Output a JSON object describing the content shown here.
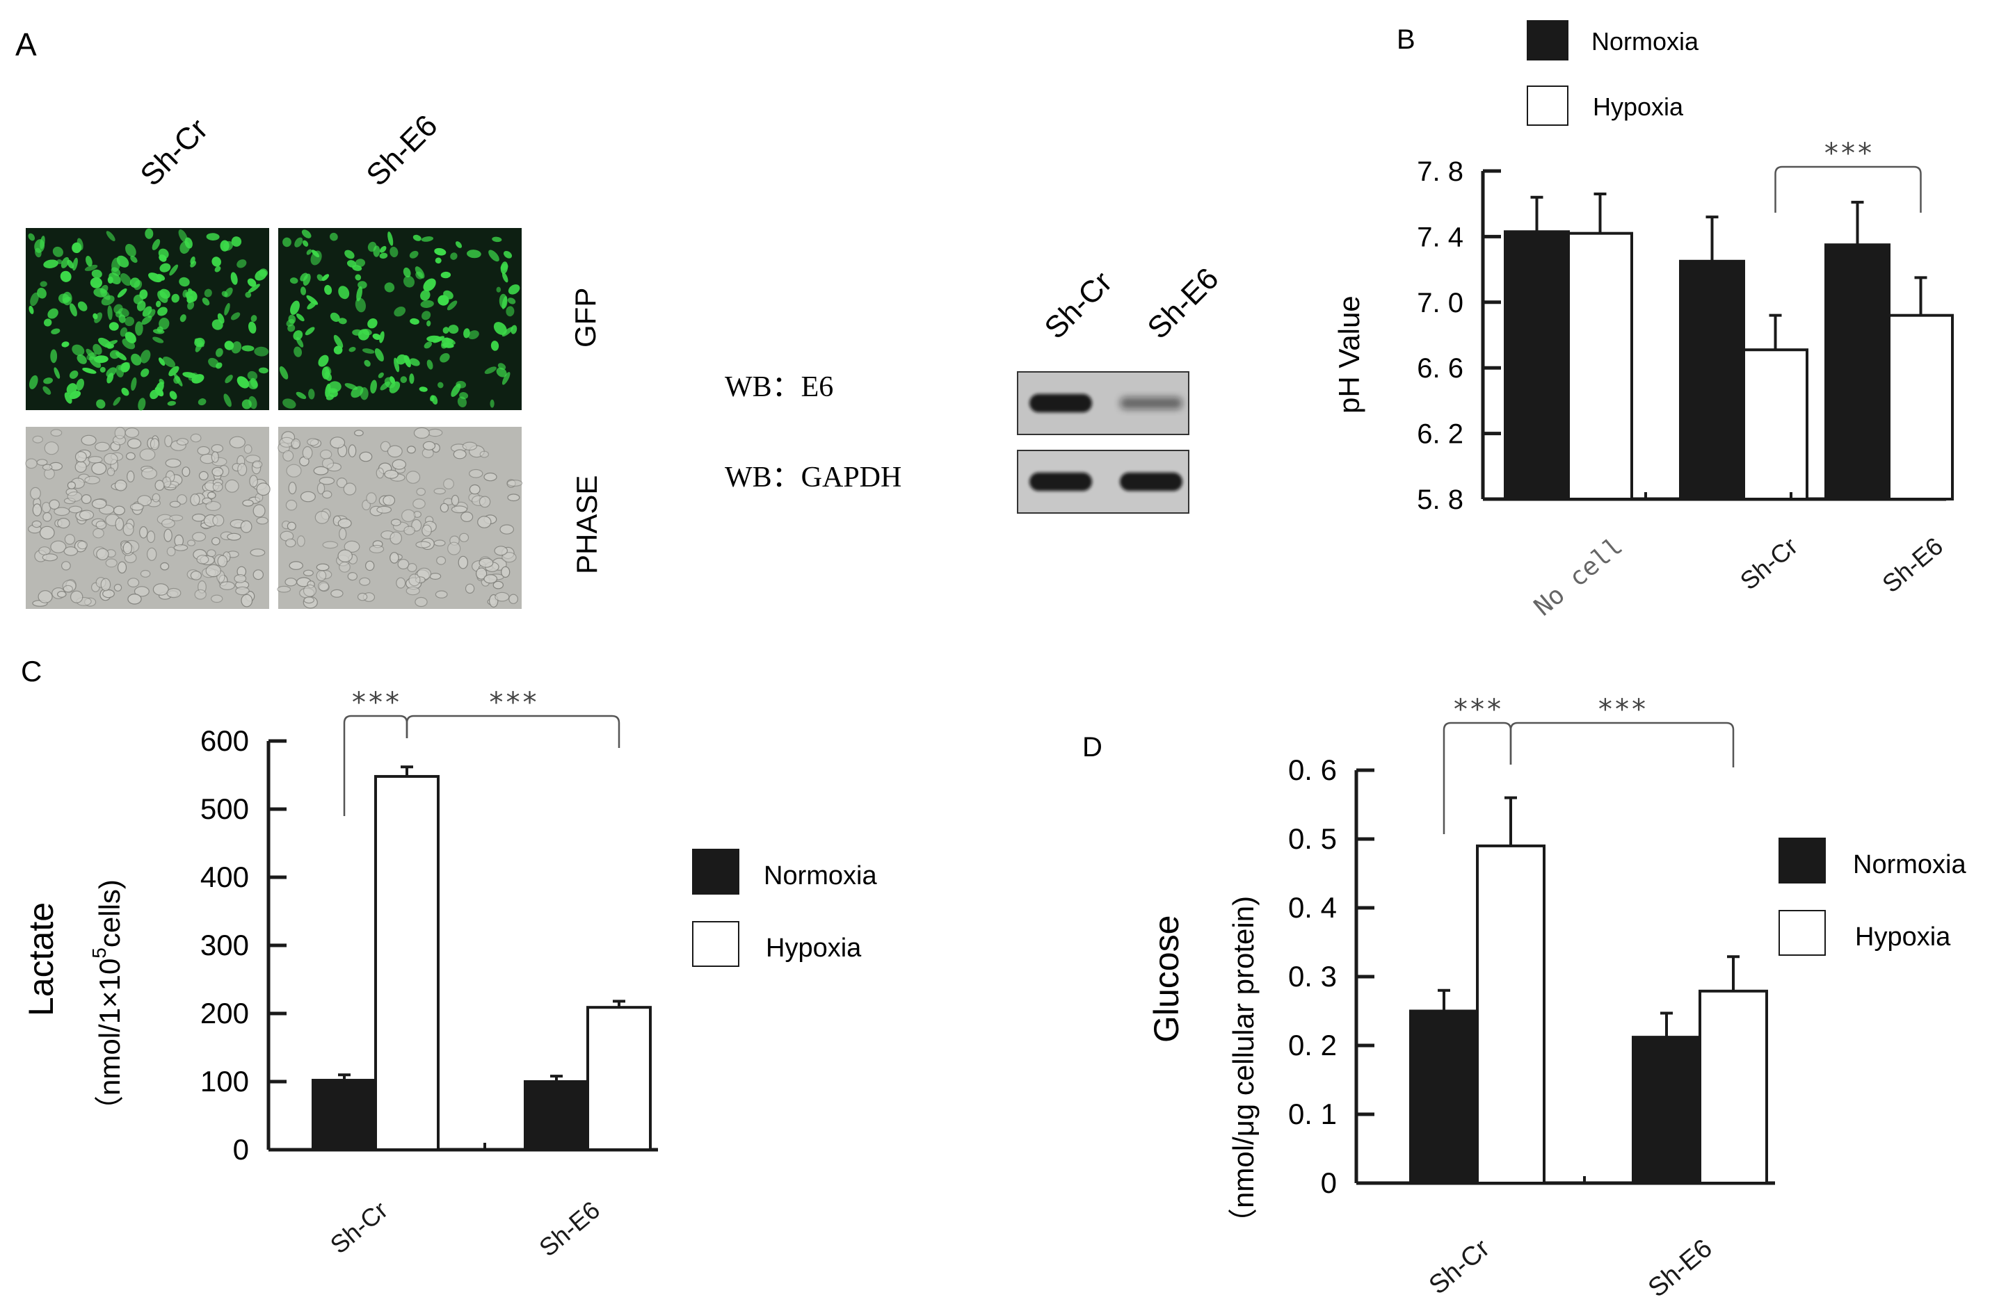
{
  "panel_labels": {
    "a": "A",
    "b": "B",
    "c": "C",
    "d": "D"
  },
  "panel_a": {
    "col_labels": [
      "Sh-Cr",
      "Sh-E6"
    ],
    "row_labels": [
      "GFP",
      "PHASE"
    ]
  },
  "western_blot": {
    "lane_labels": [
      "Sh-Cr",
      "Sh-E6"
    ],
    "rows": [
      "WB：E6",
      "WB：GAPDH"
    ],
    "band_intensity": [
      [
        0.9,
        0.35
      ],
      [
        0.9,
        0.9
      ]
    ]
  },
  "colors": {
    "normoxia": "#1a1a1a",
    "hypoxia": "#ffffff",
    "axis": "#1a1a1a",
    "gfp": "#3ddc4a",
    "gfp_bg": "#0d1f12",
    "phase_bg": "#b9b9b4"
  },
  "legend_b": [
    "Normoxia",
    "Hypoxia"
  ],
  "legend_c": [
    "Normoxia",
    "Hypoxia"
  ],
  "legend_d": [
    "Normoxia",
    "Hypoxia"
  ],
  "chart_data": [
    {
      "id": "B",
      "type": "bar",
      "ylabel": "pH Value",
      "ylim": [
        5.8,
        7.8
      ],
      "yticks": [
        "7. 8",
        "7. 4",
        "7. 0",
        "6. 6",
        "6. 2",
        "5. 8"
      ],
      "categories": [
        "No cell",
        "Sh-Cr",
        "Sh-E6"
      ],
      "series": [
        {
          "name": "Normoxia",
          "values": [
            7.43,
            7.25,
            7.35
          ],
          "errors": [
            0.21,
            0.27,
            0.26
          ]
        },
        {
          "name": "Hypoxia",
          "values": [
            7.42,
            6.71,
            6.92
          ],
          "errors": [
            0.24,
            0.21,
            0.23
          ]
        }
      ],
      "significance": [
        {
          "label": "***",
          "from": [
            1,
            1
          ],
          "to": [
            2,
            1
          ]
        }
      ],
      "legend_position": "top"
    },
    {
      "id": "C",
      "type": "bar",
      "ylabel": "Lactate",
      "ylabel_unit": "（nmol/1×10",
      "ylabel_unit_sup": "5",
      "ylabel_unit_end": "cells)",
      "ylim": [
        0,
        600
      ],
      "yticks": [
        "600",
        "500",
        "400",
        "300",
        "200",
        "100",
        "0"
      ],
      "categories": [
        "Sh-Cr",
        "Sh-E6"
      ],
      "series": [
        {
          "name": "Normoxia",
          "values": [
            102,
            100
          ],
          "errors": [
            8,
            8
          ]
        },
        {
          "name": "Hypoxia",
          "values": [
            548,
            209
          ],
          "errors": [
            14,
            9
          ]
        }
      ],
      "significance": [
        {
          "label": "***",
          "from": [
            0,
            0
          ],
          "to": [
            0,
            1
          ]
        },
        {
          "label": "***",
          "from": [
            0,
            1
          ],
          "to": [
            1,
            1
          ]
        }
      ],
      "legend_position": "right"
    },
    {
      "id": "D",
      "type": "bar",
      "ylabel": "Glucose",
      "ylabel_unit": "（nmol/μg cellular protein)",
      "ylim": [
        0,
        0.6
      ],
      "yticks": [
        "0. 6",
        "0. 5",
        "0. 4",
        "0. 3",
        "0. 2",
        "0. 1",
        "0"
      ],
      "categories": [
        "Sh-Cr",
        "Sh-E6"
      ],
      "series": [
        {
          "name": "Normoxia",
          "values": [
            0.25,
            0.212
          ],
          "errors": [
            0.03,
            0.035
          ]
        },
        {
          "name": "Hypoxia",
          "values": [
            0.49,
            0.279
          ],
          "errors": [
            0.07,
            0.05
          ]
        }
      ],
      "significance": [
        {
          "label": "***",
          "from": [
            0,
            0
          ],
          "to": [
            0,
            1
          ]
        },
        {
          "label": "***",
          "from": [
            0,
            1
          ],
          "to": [
            1,
            1
          ]
        }
      ],
      "legend_position": "right"
    }
  ]
}
